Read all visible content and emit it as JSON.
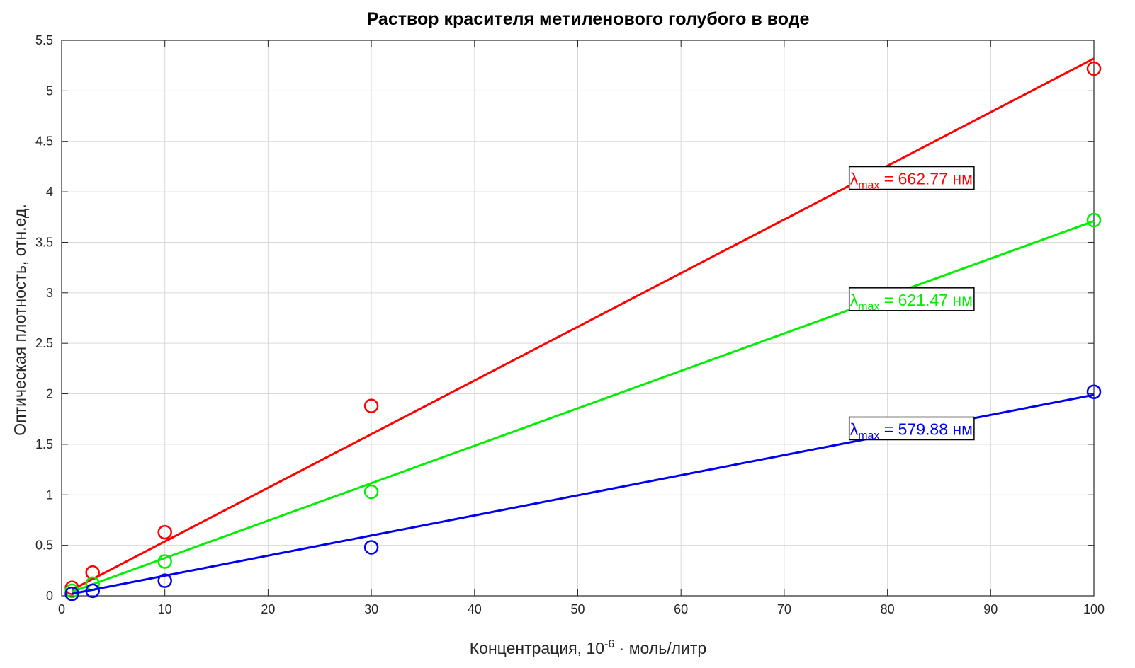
{
  "chart_data": {
    "type": "scatter",
    "title": "Раствор красителя метиленового голубого в воде",
    "xlabel": {
      "prefix": "Концентрация, 10",
      "sup": "-6",
      "suffix": " · моль/литр"
    },
    "ylabel": "Оптическая плотность, отн.ед.",
    "xlim": [
      0,
      100
    ],
    "ylim": [
      0,
      5.5
    ],
    "xticks": [
      0,
      10,
      20,
      30,
      40,
      50,
      60,
      70,
      80,
      90,
      100
    ],
    "yticks": [
      0,
      0.5,
      1,
      1.5,
      2,
      2.5,
      3,
      3.5,
      4,
      4.5,
      5,
      5.5
    ],
    "xtick_labels": [
      "0",
      "10",
      "20",
      "30",
      "40",
      "50",
      "60",
      "70",
      "80",
      "90",
      "100"
    ],
    "ytick_labels": [
      "0",
      "0.5",
      "1",
      "1.5",
      "2",
      "2.5",
      "3",
      "3.5",
      "4",
      "4.5",
      "5",
      "5.5"
    ],
    "grid": true,
    "series": [
      {
        "color": "#ff0000",
        "x": [
          1,
          3,
          10,
          30,
          100
        ],
        "y": [
          0.08,
          0.23,
          0.63,
          1.88,
          5.22
        ],
        "fit_line": {
          "x": [
            1,
            100
          ],
          "y": [
            0.06,
            5.32
          ]
        },
        "label": {
          "symbol": "λ",
          "sub": "max",
          "text": " = 662.77 нм",
          "x": 76.3,
          "y": 4.13
        }
      },
      {
        "color": "#00ee00",
        "x": [
          1,
          3,
          10,
          30,
          100
        ],
        "y": [
          0.05,
          0.12,
          0.34,
          1.03,
          3.72
        ],
        "fit_line": {
          "x": [
            1,
            100
          ],
          "y": [
            0.04,
            3.71
          ]
        },
        "label": {
          "symbol": "λ",
          "sub": "max",
          "text": " = 621.47 нм",
          "x": 76.3,
          "y": 2.93
        }
      },
      {
        "color": "#0000ee",
        "x": [
          1,
          3,
          10,
          30,
          100
        ],
        "y": [
          0.02,
          0.05,
          0.15,
          0.48,
          2.02
        ],
        "fit_line": {
          "x": [
            1,
            100
          ],
          "y": [
            0.02,
            1.99
          ]
        },
        "label": {
          "symbol": "λ",
          "sub": "max",
          "text": " = 579.88 нм",
          "x": 76.3,
          "y": 1.65
        }
      }
    ]
  }
}
